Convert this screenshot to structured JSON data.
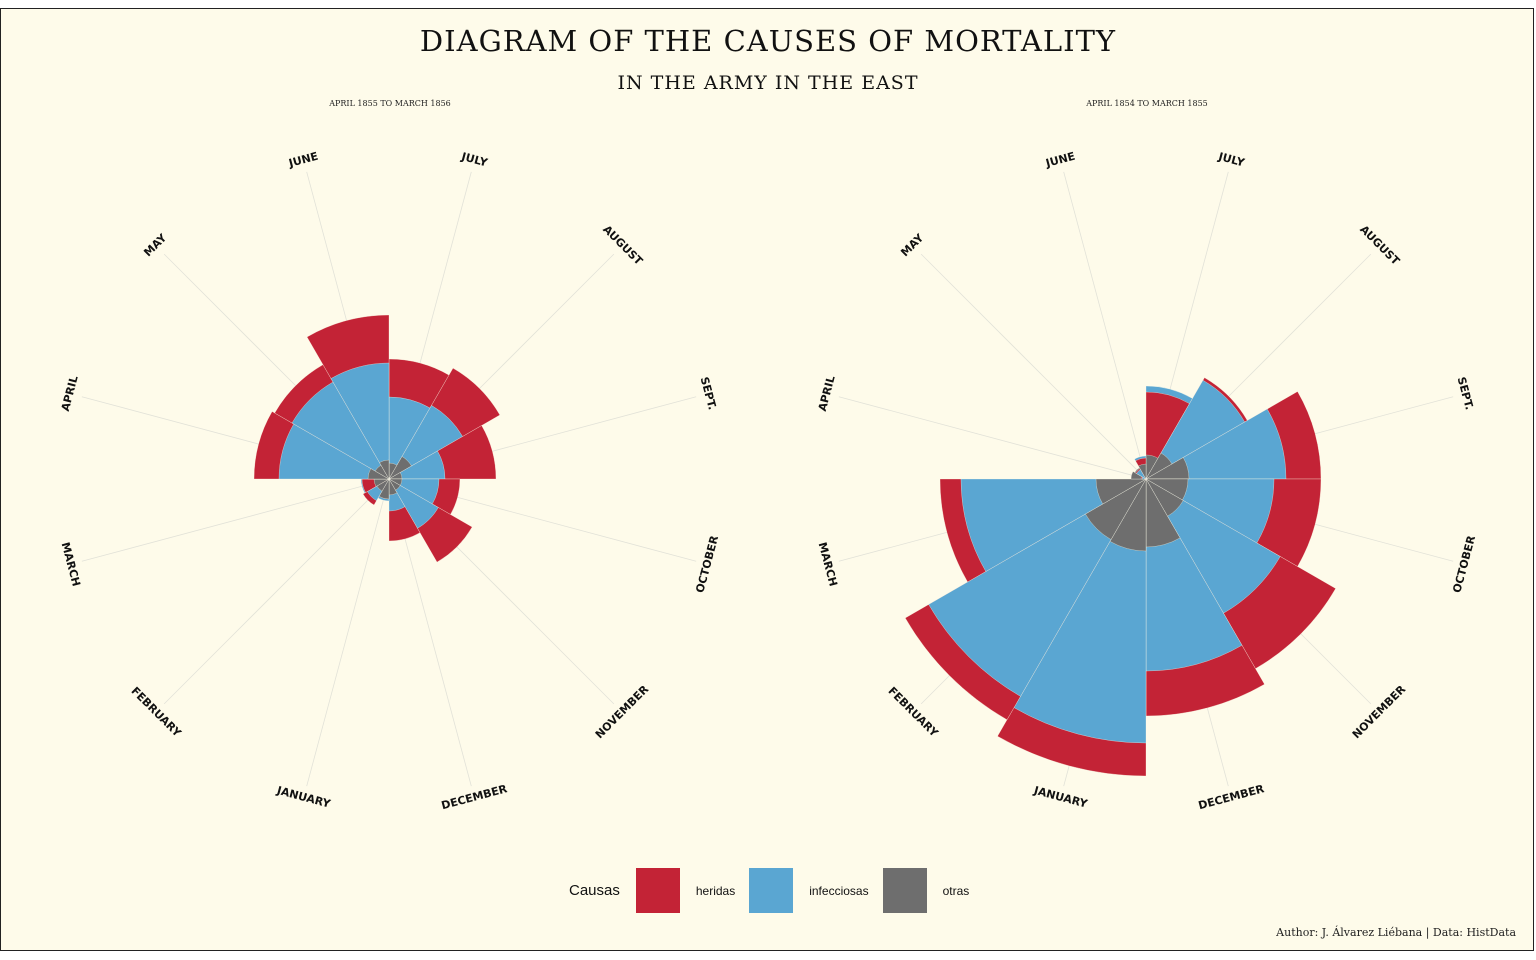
{
  "title": "DIAGRAM OF THE CAUSES OF MORTALITY",
  "subtitle": "IN THE ARMY IN THE EAST",
  "caption": "Author: J. Álvarez Liébana | Data: HistData",
  "legend": {
    "title": "Causas",
    "items": [
      {
        "label": "heridas",
        "color": "#c32336"
      },
      {
        "label": "infecciosas",
        "color": "#5aa6d2"
      },
      {
        "label": "otras",
        "color": "#6e6e6e"
      }
    ]
  },
  "chart_data": [
    {
      "type": "polar-area",
      "panel_label": "APRIL 1855 TO MARCH 1856",
      "months": [
        "JULY",
        "AUGUST",
        "SEPT.",
        "OCTOBER",
        "NOVEMBER",
        "DECEMBER",
        "JANUARY",
        "FEBRUARY",
        "MARCH",
        "APRIL",
        "MAY",
        "JUNE"
      ],
      "series": [
        {
          "name": "heridas",
          "radii": [
            120,
            128,
            107,
            71,
            96,
            62,
            20,
            30,
            27,
            135,
            132,
            164
          ]
        },
        {
          "name": "infecciosas",
          "radii": [
            82,
            85,
            56,
            50,
            57,
            32,
            22,
            25,
            28,
            110,
            112,
            116
          ]
        },
        {
          "name": "otras",
          "radii": [
            16,
            26,
            13,
            13,
            13,
            16,
            20,
            14,
            15,
            21,
            16,
            19
          ]
        }
      ]
    },
    {
      "type": "polar-area",
      "panel_label": "APRIL 1854 TO MARCH 1855",
      "months": [
        "JULY",
        "AUGUST",
        "SEPT.",
        "OCTOBER",
        "NOVEMBER",
        "DECEMBER",
        "JANUARY",
        "FEBRUARY",
        "MARCH",
        "APRIL",
        "MAY",
        "JUNE"
      ],
      "series": [
        {
          "name": "heridas",
          "radii": [
            87,
            117,
            175,
            175,
            219,
            237,
            297,
            278,
            206,
            5,
            12,
            21
          ]
        },
        {
          "name": "infecciosas",
          "radii": [
            93,
            114,
            140,
            128,
            155,
            192,
            264,
            251,
            185,
            4,
            11,
            23
          ]
        },
        {
          "name": "otras",
          "radii": [
            24,
            30,
            43,
            42,
            43,
            68,
            72,
            70,
            50,
            15,
            13,
            15
          ]
        }
      ]
    }
  ]
}
